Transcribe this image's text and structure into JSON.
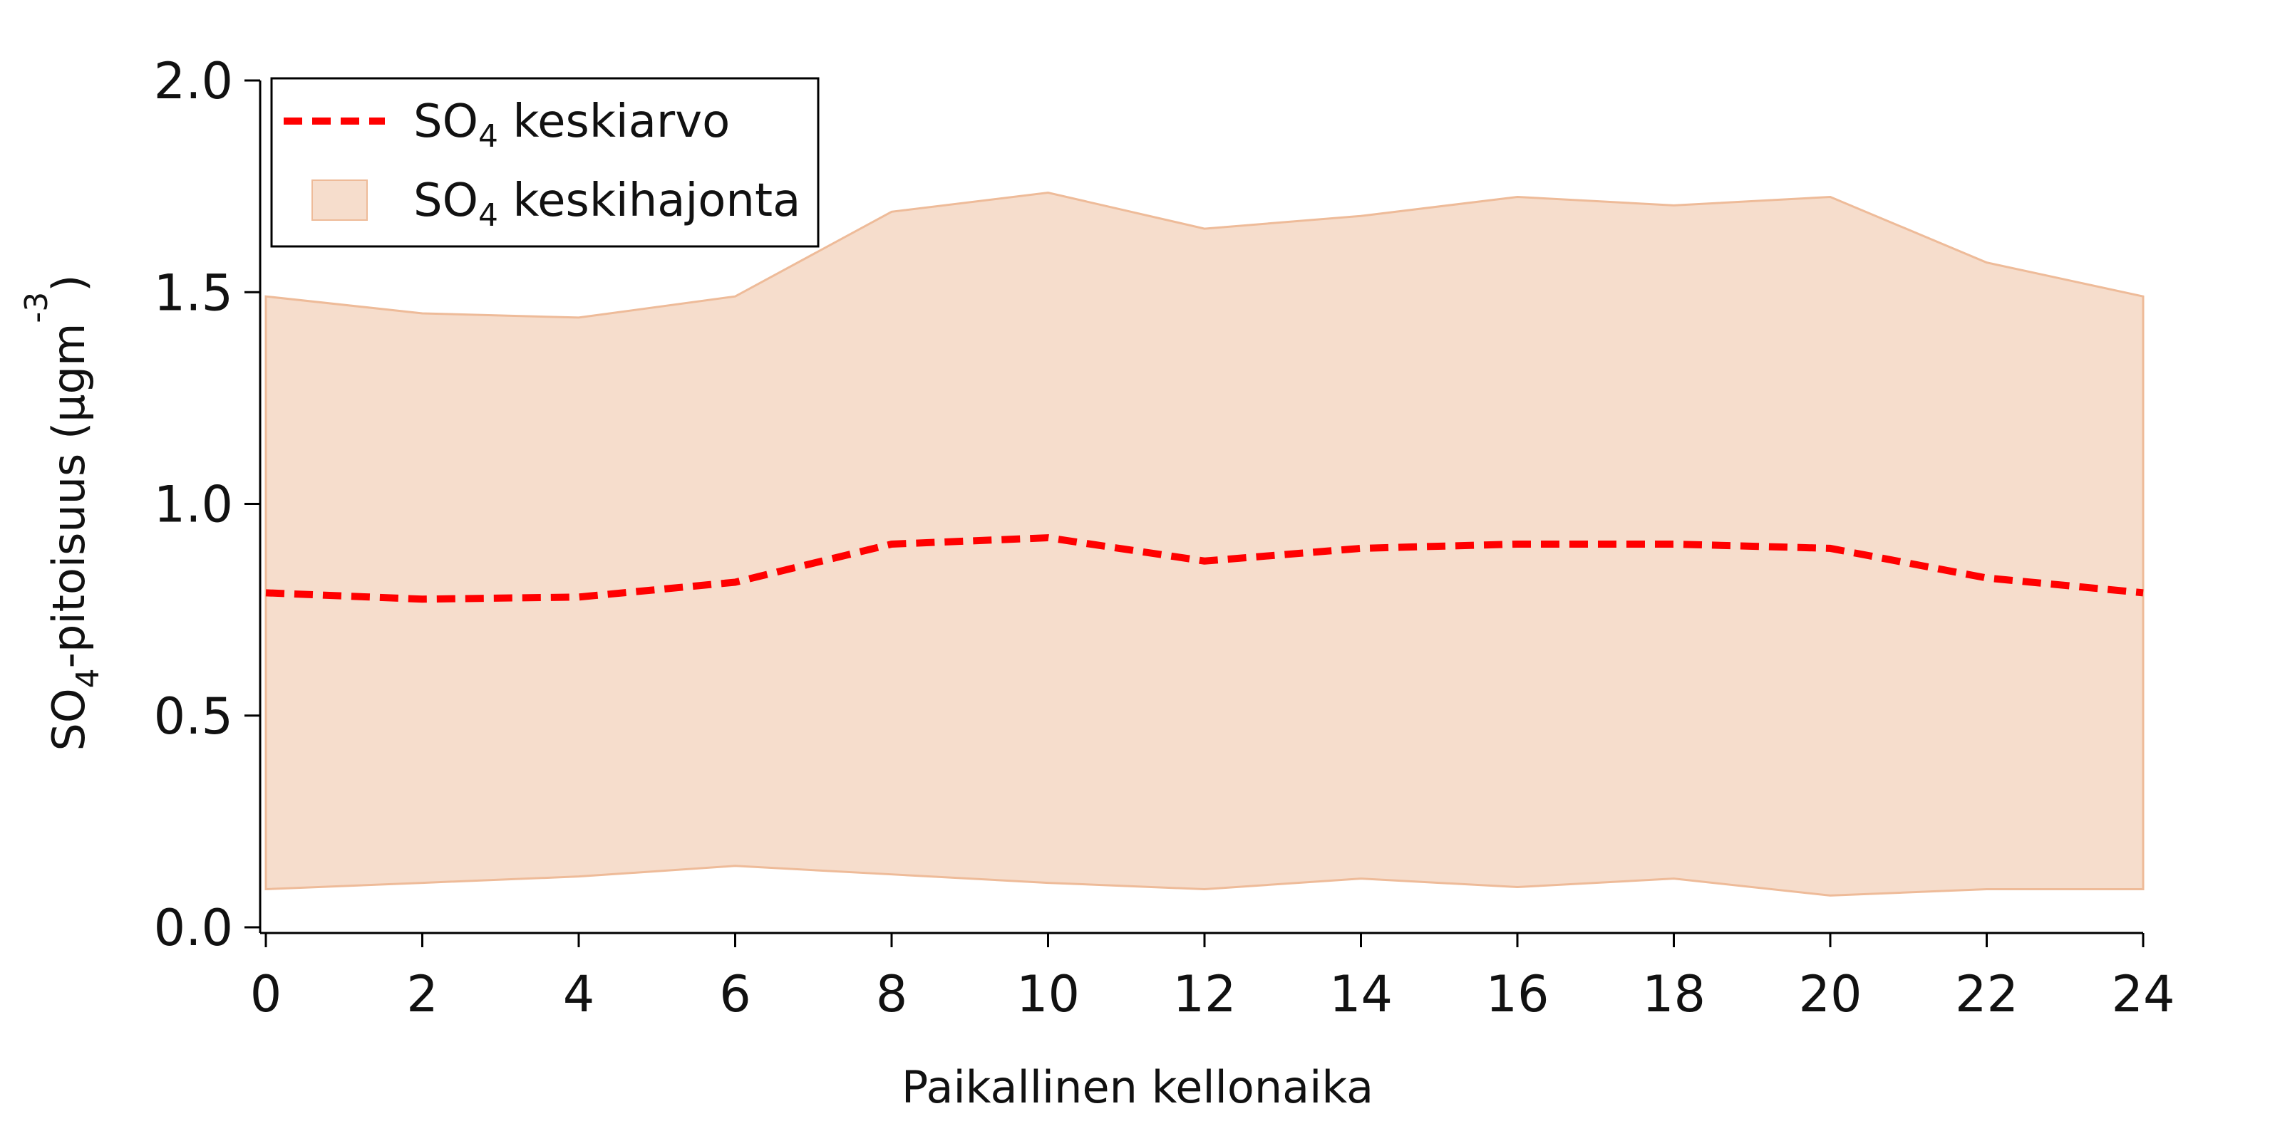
{
  "chart_data": {
    "type": "area",
    "x": [
      0,
      2,
      4,
      6,
      8,
      10,
      12,
      14,
      16,
      18,
      20,
      22,
      24
    ],
    "series": [
      {
        "name": "SO4 keskiarvo",
        "kind": "line",
        "style": "dashed",
        "color": "#ff0000",
        "values": [
          0.79,
          0.775,
          0.78,
          0.815,
          0.905,
          0.92,
          0.865,
          0.895,
          0.905,
          0.905,
          0.895,
          0.825,
          0.79
        ]
      },
      {
        "name": "SO4 keskihajonta",
        "kind": "band",
        "color": "#f6ddcc",
        "edge_color": "#eebb99",
        "upper": [
          1.49,
          1.45,
          1.44,
          1.49,
          1.69,
          1.735,
          1.65,
          1.68,
          1.725,
          1.705,
          1.725,
          1.57,
          1.49
        ],
        "lower": [
          0.09,
          0.105,
          0.12,
          0.145,
          0.125,
          0.105,
          0.09,
          0.115,
          0.095,
          0.115,
          0.075,
          0.09,
          0.09
        ]
      }
    ],
    "xlim": [
      0,
      24
    ],
    "ylim": [
      0,
      2.0
    ],
    "x_ticks": [
      "0",
      "2",
      "4",
      "6",
      "8",
      "10",
      "12",
      "14",
      "16",
      "18",
      "20",
      "22",
      "24"
    ],
    "y_ticks": [
      "0.0",
      "0.5",
      "1.0",
      "1.5",
      "2.0"
    ],
    "xlabel": "Paikallinen kellonaika",
    "ylabel": {
      "so": "SO",
      "sub": "4",
      "rest": "-pitoisuus (µgm",
      "sup": "-3",
      "close": ")"
    },
    "legend": {
      "position": "top-left",
      "items": [
        {
          "prefix": "SO",
          "sub": "4",
          "suffix": " keskiarvo"
        },
        {
          "prefix": "SO",
          "sub": "4",
          "suffix": " keskihajonta"
        }
      ]
    },
    "grid": false
  }
}
